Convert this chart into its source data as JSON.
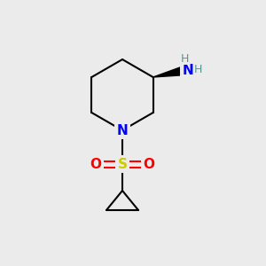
{
  "background_color": "#ebebeb",
  "atom_colors": {
    "N": "#0000ff",
    "S": "#cccc00",
    "O": "#ff0000",
    "C": "#000000",
    "H": "#4a9a9a"
  },
  "bond_color": "#000000",
  "bond_width": 1.5,
  "figsize": [
    3.0,
    3.0
  ],
  "dpi": 100,
  "xlim": [
    0,
    300
  ],
  "ylim": [
    0,
    300
  ]
}
